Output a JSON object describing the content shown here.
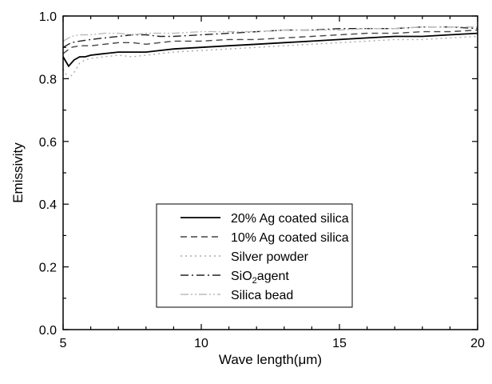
{
  "chart_data": {
    "type": "line",
    "xlabel": "Wave length(μm)",
    "ylabel": "Emissivity",
    "xlim": [
      5,
      20
    ],
    "ylim": [
      0.0,
      1.0
    ],
    "x_ticks": [
      "5",
      "10",
      "15",
      "20"
    ],
    "y_ticks": [
      "0.0",
      "0.2",
      "0.4",
      "0.6",
      "0.8",
      "1.0"
    ],
    "grid": false,
    "legend_position": "center-right",
    "series": [
      {
        "name": "20% Ag coated silica",
        "name_parts": [
          "20% Ag coated silica"
        ],
        "color": "#000000",
        "dash": "solid",
        "x": [
          5,
          5.2,
          5.4,
          5.6,
          5.8,
          6,
          6.5,
          7,
          7.5,
          8,
          8.5,
          9,
          10,
          11,
          12,
          13,
          14,
          15,
          16,
          17,
          18,
          19,
          20
        ],
        "y": [
          0.87,
          0.84,
          0.86,
          0.87,
          0.87,
          0.875,
          0.88,
          0.885,
          0.885,
          0.885,
          0.89,
          0.895,
          0.9,
          0.905,
          0.91,
          0.915,
          0.92,
          0.925,
          0.93,
          0.935,
          0.935,
          0.94,
          0.945
        ]
      },
      {
        "name": "10% Ag coated silica",
        "name_parts": [
          "10% Ag coated silica"
        ],
        "color": "#444444",
        "dash": "dashed",
        "x": [
          5,
          5.3,
          5.6,
          6,
          6.5,
          7,
          7.5,
          8,
          8.5,
          9,
          10,
          11,
          12,
          13,
          14,
          15,
          16,
          17,
          18,
          19,
          20
        ],
        "y": [
          0.88,
          0.9,
          0.905,
          0.905,
          0.91,
          0.915,
          0.915,
          0.91,
          0.915,
          0.92,
          0.92,
          0.925,
          0.925,
          0.93,
          0.935,
          0.94,
          0.945,
          0.945,
          0.95,
          0.95,
          0.955
        ]
      },
      {
        "name": "Silver powder",
        "name_parts": [
          "Silver powder"
        ],
        "color": "#aaaaaa",
        "dash": "dotted",
        "x": [
          5,
          5.2,
          5.4,
          5.6,
          5.8,
          6,
          6.5,
          7,
          7.5,
          8,
          8.5,
          9,
          10,
          11,
          12,
          13,
          14,
          15,
          16,
          17,
          18,
          19,
          20
        ],
        "y": [
          0.83,
          0.8,
          0.82,
          0.85,
          0.86,
          0.865,
          0.87,
          0.875,
          0.87,
          0.875,
          0.88,
          0.885,
          0.89,
          0.895,
          0.9,
          0.905,
          0.91,
          0.915,
          0.92,
          0.925,
          0.925,
          0.93,
          0.935
        ]
      },
      {
        "name": "SiO2agent",
        "name_parts": [
          "SiO",
          "2",
          "agent"
        ],
        "color": "#222222",
        "dash": "dashdot",
        "x": [
          5,
          5.3,
          5.6,
          6,
          6.5,
          7,
          7.5,
          8,
          8.5,
          9,
          10,
          11,
          12,
          13,
          14,
          15,
          16,
          17,
          18,
          19,
          20
        ],
        "y": [
          0.9,
          0.915,
          0.92,
          0.925,
          0.93,
          0.935,
          0.94,
          0.94,
          0.935,
          0.935,
          0.94,
          0.945,
          0.95,
          0.955,
          0.955,
          0.96,
          0.96,
          0.96,
          0.965,
          0.965,
          0.96
        ]
      },
      {
        "name": "Silica bead",
        "name_parts": [
          "Silica bead"
        ],
        "color": "#bbbbbb",
        "dash": "dashdotdot",
        "x": [
          5,
          5.3,
          5.6,
          6,
          6.5,
          7,
          7.5,
          8,
          8.5,
          9,
          10,
          11,
          12,
          13,
          14,
          15,
          16,
          17,
          18,
          19,
          20
        ],
        "y": [
          0.92,
          0.935,
          0.94,
          0.94,
          0.945,
          0.945,
          0.94,
          0.945,
          0.945,
          0.945,
          0.95,
          0.95,
          0.95,
          0.955,
          0.955,
          0.955,
          0.96,
          0.96,
          0.965,
          0.965,
          0.965
        ]
      }
    ]
  }
}
